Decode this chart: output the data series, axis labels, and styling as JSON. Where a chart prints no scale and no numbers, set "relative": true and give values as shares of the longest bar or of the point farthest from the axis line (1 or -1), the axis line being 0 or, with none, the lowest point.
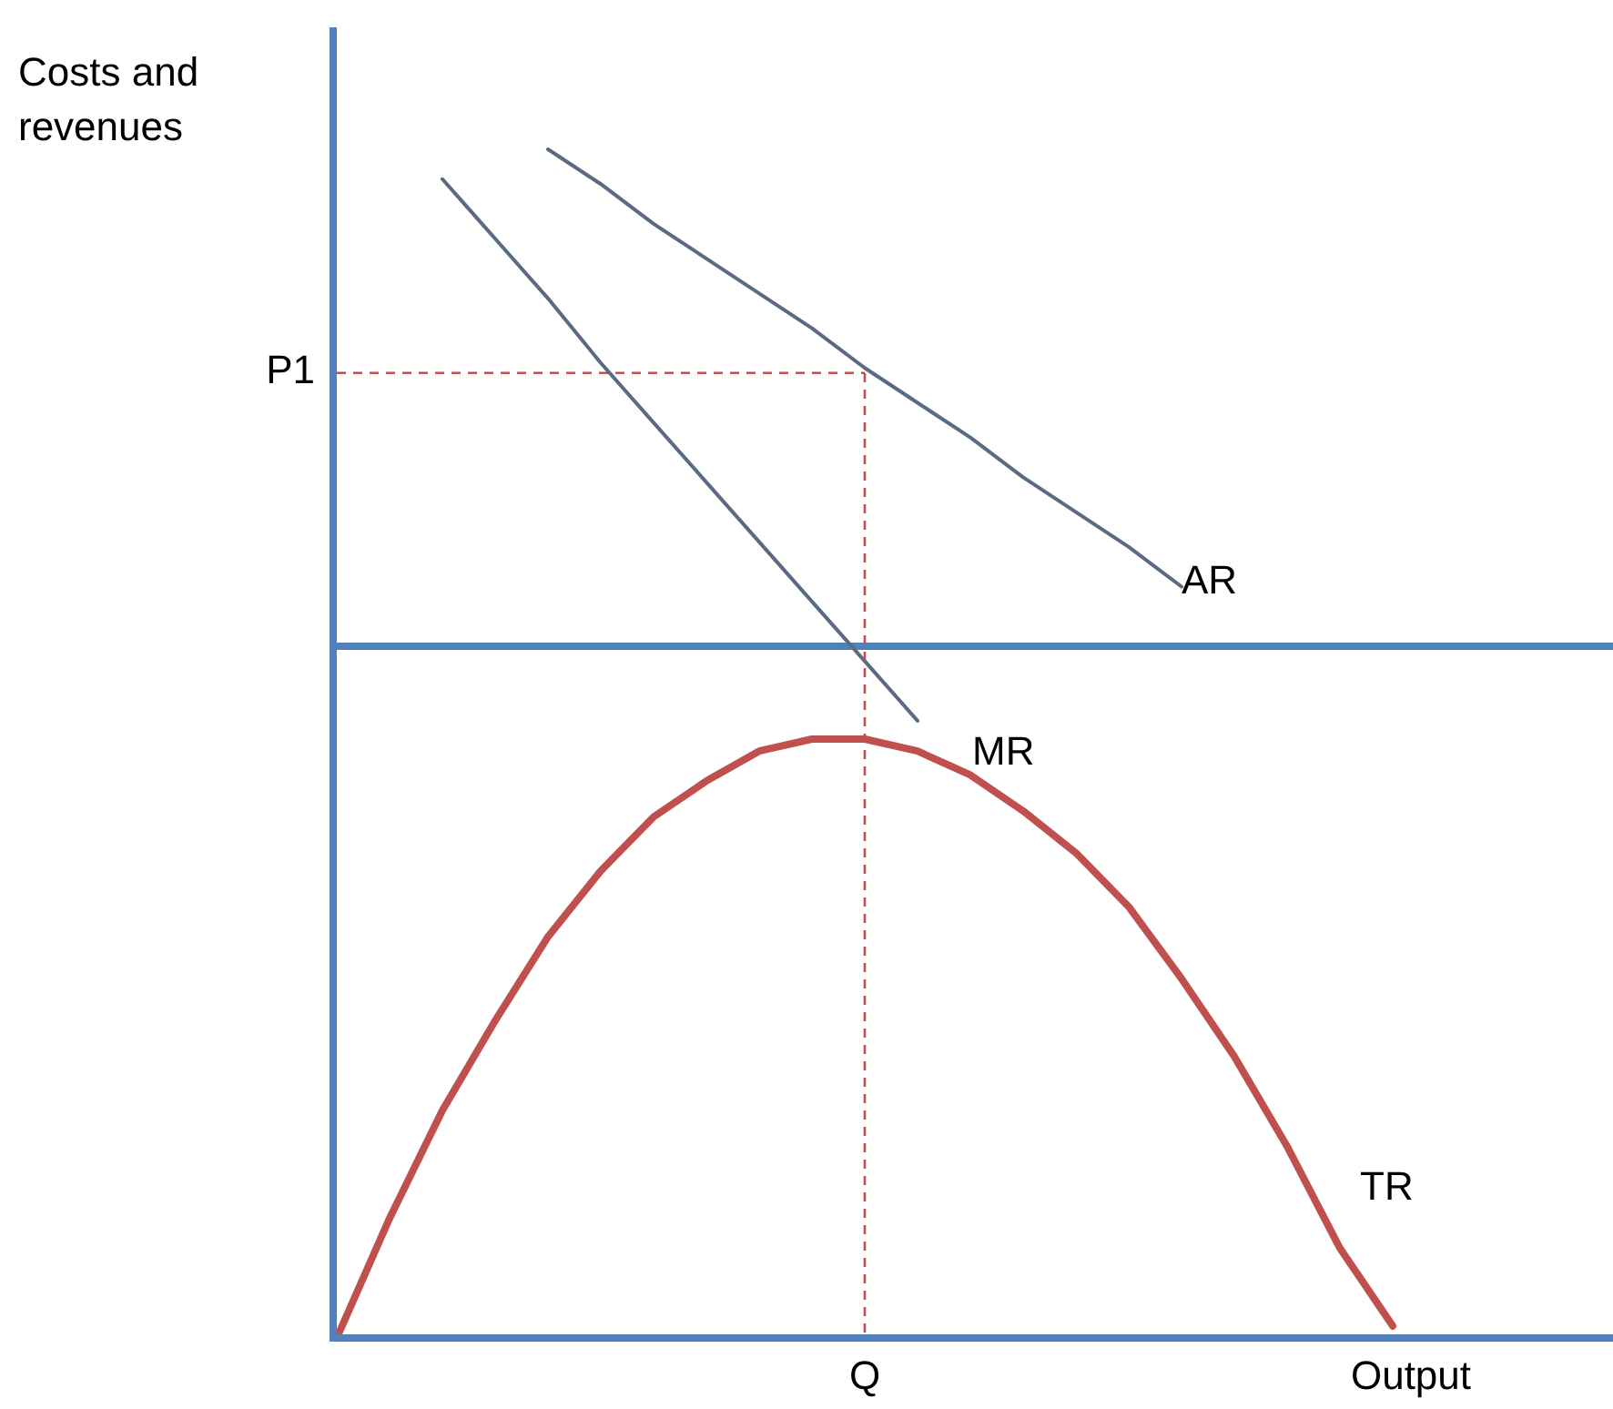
{
  "chart_data": [
    {
      "type": "line",
      "ylabel": "Costs and revenues",
      "relative": true,
      "categories": [
        null,
        null,
        null,
        null,
        null,
        null,
        null,
        null,
        null,
        null,
        null,
        null,
        null,
        null,
        null,
        null,
        null,
        null,
        null,
        null,
        null,
        null,
        null,
        null,
        null
      ],
      "series": [
        {
          "name": "AR",
          "color": "#5a6a80",
          "values": [
            null,
            null,
            null,
            null,
            1.0,
            0.93,
            0.85,
            0.78,
            0.71,
            0.64,
            0.56,
            0.49,
            0.42,
            0.34,
            0.27,
            0.2,
            0.12,
            null,
            null,
            null,
            null,
            null,
            null,
            null,
            null
          ]
        },
        {
          "name": "MR",
          "color": "#5a6a80",
          "values": [
            null,
            null,
            0.94,
            0.82,
            0.7,
            0.57,
            0.45,
            0.33,
            0.21,
            0.09,
            -0.03,
            -0.15,
            null,
            null,
            null,
            null,
            null,
            null,
            null,
            null,
            null,
            null,
            null,
            null,
            null
          ]
        }
      ],
      "ref_lines": [
        {
          "axis": "y",
          "value": 0.55,
          "label": "P1",
          "color": "#c0504d",
          "line_style": "dashed"
        },
        {
          "axis": "y",
          "value": 0,
          "color": "#4f81bd",
          "line_style": "solid"
        }
      ]
    },
    {
      "type": "line",
      "xlabel": "Output",
      "relative": true,
      "categories": [
        null,
        null,
        null,
        null,
        null,
        null,
        null,
        null,
        null,
        null,
        null,
        null,
        null,
        null,
        null,
        null,
        null,
        null,
        null,
        null,
        null,
        null,
        null,
        null,
        null
      ],
      "series": [
        {
          "name": "TR",
          "color": "#c0504d",
          "values": [
            0,
            0.2,
            0.38,
            0.53,
            0.67,
            0.78,
            0.87,
            0.93,
            0.98,
            1.0,
            1.0,
            0.98,
            0.94,
            0.88,
            0.81,
            0.72,
            0.6,
            0.47,
            0.32,
            0.15,
            0.02,
            null,
            null,
            null,
            null
          ]
        }
      ],
      "annotations": [
        "Q"
      ]
    }
  ]
}
